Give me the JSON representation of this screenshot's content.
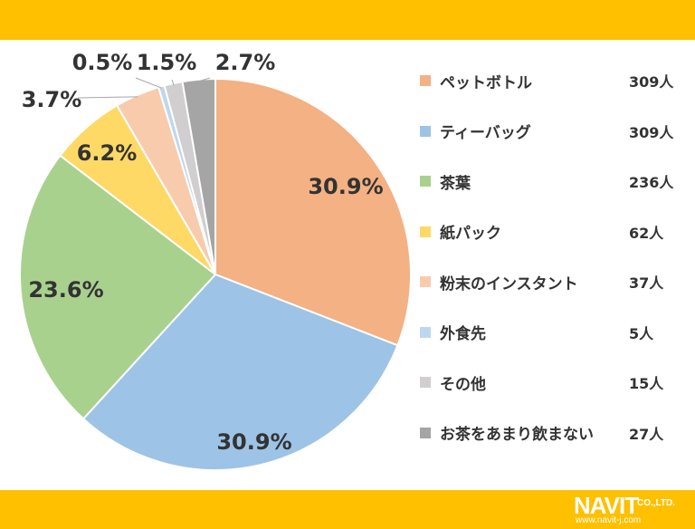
{
  "colors": {
    "band": "#FFC000",
    "logo": "#ffffff"
  },
  "logo": {
    "brand": "NAVIT",
    "suffix": "CO.,LTD.",
    "url": "www.navit-j.com"
  },
  "chart_data": {
    "type": "pie",
    "start_angle_deg": 0,
    "direction": "clockwise",
    "legend_placement": "right",
    "title": "",
    "slices": [
      {
        "name": "ペットボトル",
        "count": "309人",
        "value": 309,
        "percent": "30.9%",
        "color": "#F4B183"
      },
      {
        "name": "ティーバッグ",
        "count": "309人",
        "value": 309,
        "percent": "30.9%",
        "color": "#9DC3E6"
      },
      {
        "name": "茶葉",
        "count": "236人",
        "value": 236,
        "percent": "23.6%",
        "color": "#A9D18E"
      },
      {
        "name": "紙パック",
        "count": "62人",
        "value": 62,
        "percent": "6.2%",
        "color": "#FFD966"
      },
      {
        "name": "粉末のインスタント",
        "count": "37人",
        "value": 37,
        "percent": "3.7%",
        "color": "#F8CBAD"
      },
      {
        "name": "外食先",
        "count": "5人",
        "value": 5,
        "percent": "0.5%",
        "color": "#BDD7EE"
      },
      {
        "name": "その他",
        "count": "15人",
        "value": 15,
        "percent": "1.5%",
        "color": "#D0CECE"
      },
      {
        "name": "お茶をあまり飲まない",
        "count": "27人",
        "value": 27,
        "percent": "2.7%",
        "color": "#A5A5A5"
      }
    ]
  }
}
